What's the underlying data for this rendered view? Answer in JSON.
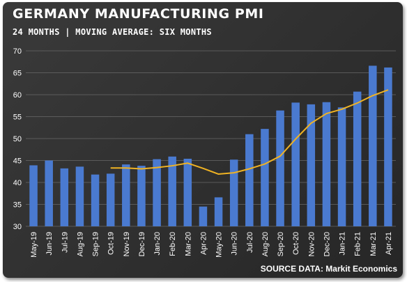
{
  "header": {
    "title": "GERMANY MANUFACTURING PMI",
    "subtitle": "24 MONTHS | MOVING AVERAGE: SIX MONTHS"
  },
  "footer": {
    "source": "SOURCE DATA: Markit Economics"
  },
  "colors": {
    "bar": "#4a7ad0",
    "moving_average": "#f0b323",
    "background": "#2f2f2f"
  },
  "chart_data": {
    "type": "bar",
    "title": "GERMANY MANUFACTURING PMI",
    "subtitle": "24 MONTHS | MOVING AVERAGE: SIX MONTHS",
    "categories": [
      "May-19",
      "Jun-19",
      "Jul-19",
      "Aug-19",
      "Sep-19",
      "Oct-19",
      "Nov-19",
      "Dec-19",
      "Jan-20",
      "Feb-20",
      "Mar-20",
      "Apr-20",
      "May-20",
      "Jun-20",
      "Jul-20",
      "Aug-20",
      "Sep-20",
      "Oct-20",
      "Nov-20",
      "Dec-20",
      "Jan-21",
      "Feb-21",
      "Mar-21",
      "Apr-21"
    ],
    "series": [
      {
        "type": "bar",
        "values": [
          43.9,
          45.0,
          43.2,
          43.6,
          41.8,
          42.0,
          44.1,
          43.8,
          45.3,
          45.9,
          45.4,
          34.5,
          36.6,
          45.2,
          51.0,
          52.2,
          56.4,
          58.2,
          57.8,
          58.3,
          57.1,
          60.7,
          66.6,
          66.2
        ]
      },
      {
        "type": "line",
        "values": [
          null,
          null,
          null,
          null,
          null,
          43.3,
          43.3,
          43.1,
          43.4,
          43.8,
          44.4,
          43.2,
          41.9,
          42.2,
          43.1,
          44.2,
          46.0,
          49.9,
          53.5,
          55.7,
          56.7,
          58.1,
          59.8,
          61.1
        ]
      }
    ],
    "ylim": [
      30,
      70
    ],
    "yticks": [
      30,
      35,
      40,
      45,
      50,
      55,
      60,
      65,
      70
    ],
    "grid": true,
    "legend": "none",
    "source": "SOURCE DATA: Markit Economics"
  }
}
